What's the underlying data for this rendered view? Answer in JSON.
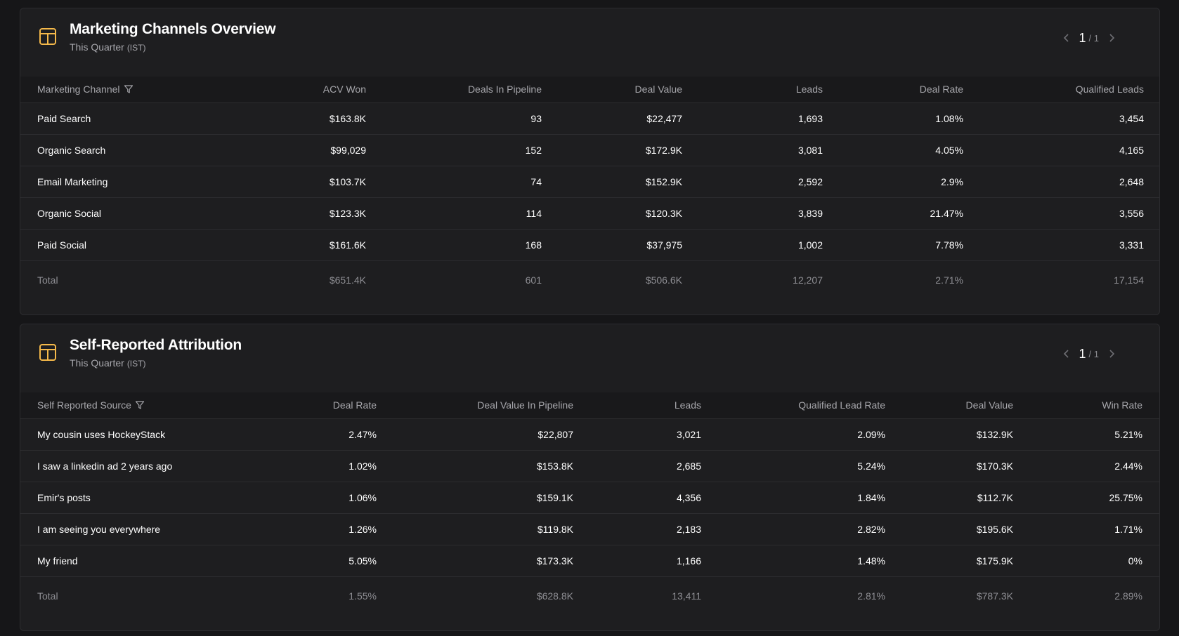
{
  "colors": {
    "background": "#161618",
    "panel": "#1e1e20",
    "header_row": "#19191b",
    "accent_icon": "#f5b94a",
    "muted_text": "#8e8e93"
  },
  "panels": [
    {
      "title": "Marketing Channels Overview",
      "subtitle": "This Quarter",
      "timezone": "(IST)",
      "icon": "table-icon",
      "pager": {
        "current": "1",
        "total": "/ 1"
      },
      "columns": [
        "Marketing Channel",
        "ACV Won",
        "Deals In Pipeline",
        "Deal Value",
        "Leads",
        "Deal Rate",
        "Qualified Leads"
      ],
      "rows": [
        [
          "Paid Search",
          "$163.8K",
          "93",
          "$22,477",
          "1,693",
          "1.08%",
          "3,454"
        ],
        [
          "Organic Search",
          "$99,029",
          "152",
          "$172.9K",
          "3,081",
          "4.05%",
          "4,165"
        ],
        [
          "Email Marketing",
          "$103.7K",
          "74",
          "$152.9K",
          "2,592",
          "2.9%",
          "2,648"
        ],
        [
          "Organic Social",
          "$123.3K",
          "114",
          "$120.3K",
          "3,839",
          "21.47%",
          "3,556"
        ],
        [
          "Paid Social",
          "$161.6K",
          "168",
          "$37,975",
          "1,002",
          "7.78%",
          "3,331"
        ]
      ],
      "total": [
        "Total",
        "$651.4K",
        "601",
        "$506.6K",
        "12,207",
        "2.71%",
        "17,154"
      ]
    },
    {
      "title": "Self-Reported Attribution",
      "subtitle": "This Quarter",
      "timezone": "(IST)",
      "icon": "table-icon",
      "pager": {
        "current": "1",
        "total": "/ 1"
      },
      "columns": [
        "Self Reported Source",
        "Deal Rate",
        "Deal Value In Pipeline",
        "Leads",
        "Qualified Lead Rate",
        "Deal Value",
        "Win Rate"
      ],
      "rows": [
        [
          "My cousin uses HockeyStack",
          "2.47%",
          "$22,807",
          "3,021",
          "2.09%",
          "$132.9K",
          "5.21%"
        ],
        [
          "I saw a linkedin ad 2 years ago",
          "1.02%",
          "$153.8K",
          "2,685",
          "5.24%",
          "$170.3K",
          "2.44%"
        ],
        [
          "Emir's posts",
          "1.06%",
          "$159.1K",
          "4,356",
          "1.84%",
          "$112.7K",
          "25.75%"
        ],
        [
          "I am seeing you everywhere",
          "1.26%",
          "$119.8K",
          "2,183",
          "2.82%",
          "$195.6K",
          "1.71%"
        ],
        [
          "My friend",
          "5.05%",
          "$173.3K",
          "1,166",
          "1.48%",
          "$175.9K",
          "0%"
        ]
      ],
      "total": [
        "Total",
        "1.55%",
        "$628.8K",
        "13,411",
        "2.81%",
        "$787.3K",
        "2.89%"
      ]
    }
  ]
}
